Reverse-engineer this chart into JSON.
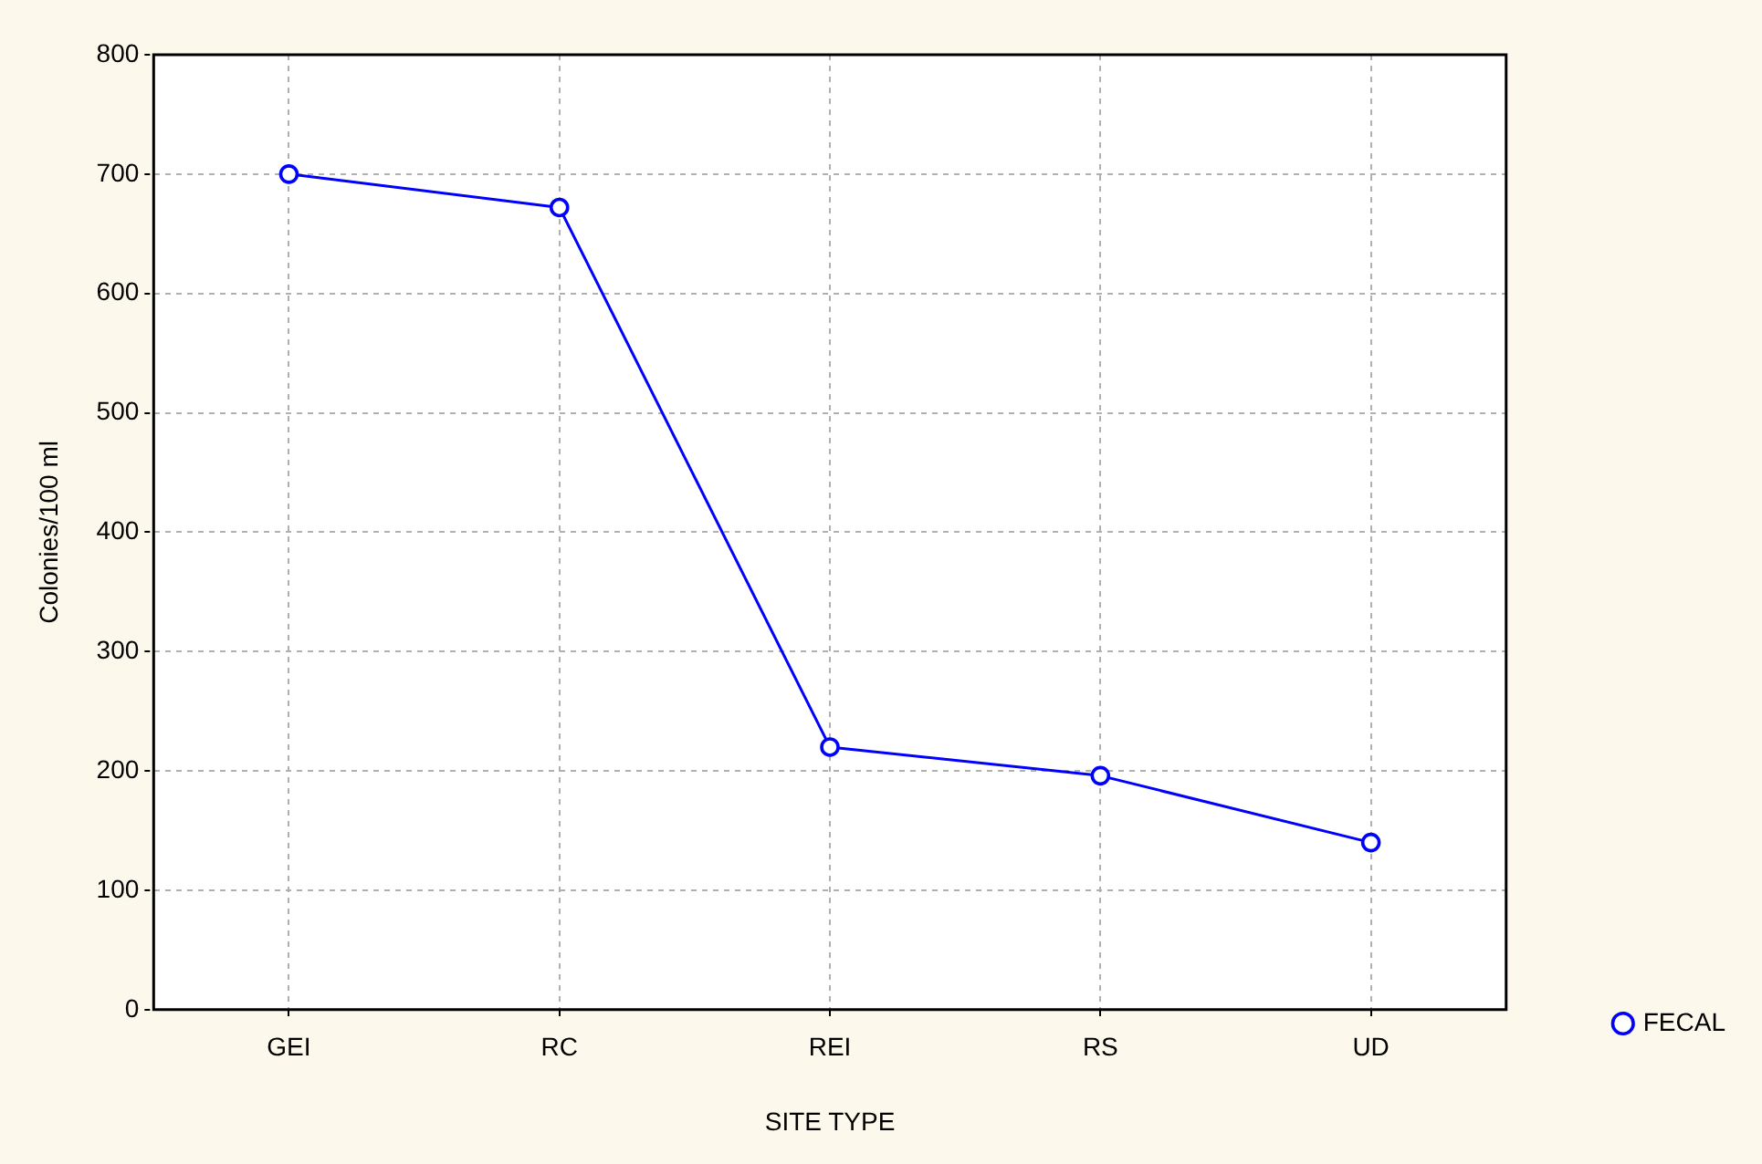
{
  "chart_data": {
    "type": "line",
    "xlabel": "SITE TYPE",
    "ylabel": "Colonies/100 ml",
    "categories": [
      "GEI",
      "RC",
      "REI",
      "RS",
      "UD"
    ],
    "series": [
      {
        "name": "FECAL",
        "color": "#0000ff",
        "values": [
          700,
          672,
          220,
          196,
          140
        ]
      }
    ],
    "ylim": [
      0,
      800
    ],
    "yticks": [
      0,
      100,
      200,
      300,
      400,
      500,
      600,
      700,
      800
    ],
    "grid": true,
    "legend": "bottom right",
    "marker": "circle",
    "line_style": "solid"
  }
}
